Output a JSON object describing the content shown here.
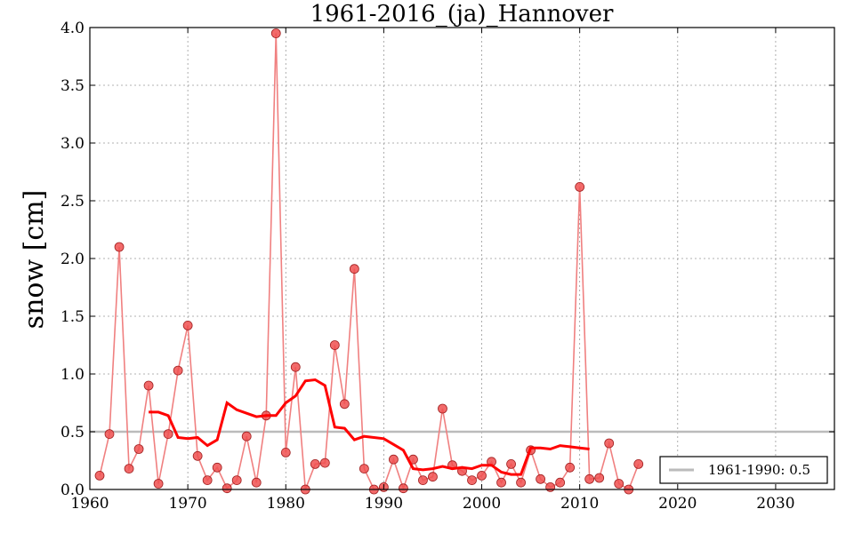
{
  "chart_data": {
    "type": "line",
    "title": "1961-2016_(ja)_Hannover",
    "xlabel": "",
    "ylabel": "snow [cm]",
    "xlim": [
      1960,
      2036
    ],
    "ylim": [
      0,
      4.0
    ],
    "xticks": [
      1960,
      1970,
      1980,
      1990,
      2000,
      2010,
      2020,
      2030
    ],
    "yticks": [
      0.0,
      0.5,
      1.0,
      1.5,
      2.0,
      2.5,
      3.0,
      3.5,
      4.0
    ],
    "ytick_labels": [
      "0.0",
      "0.5",
      "1.0",
      "1.5",
      "2.0",
      "2.5",
      "3.0",
      "3.5",
      "4.0"
    ],
    "grid": true,
    "legend_position": "bottom-right",
    "colors": {
      "annual": "#f08080",
      "marker": "#f05050",
      "smooth": "#ff0000",
      "reference": "#bbbbbb"
    },
    "series": [
      {
        "kind": "annual",
        "x": [
          1961,
          1962,
          1963,
          1964,
          1965,
          1966,
          1967,
          1968,
          1969,
          1970,
          1971,
          1972,
          1973,
          1974,
          1975,
          1976,
          1977,
          1978,
          1979,
          1980,
          1981,
          1982,
          1983,
          1984,
          1985,
          1986,
          1987,
          1988,
          1989,
          1990,
          1991,
          1992,
          1993,
          1994,
          1995,
          1996,
          1997,
          1998,
          1999,
          2000,
          2001,
          2002,
          2003,
          2004,
          2005,
          2006,
          2007,
          2008,
          2009,
          2010,
          2011,
          2012,
          2013,
          2014,
          2015,
          2016
        ],
        "values": [
          0.12,
          0.48,
          2.1,
          0.18,
          0.35,
          0.9,
          0.05,
          0.48,
          1.03,
          1.42,
          0.29,
          0.08,
          0.19,
          0.01,
          0.08,
          0.46,
          0.06,
          0.64,
          3.95,
          0.32,
          1.06,
          0.0,
          0.22,
          0.23,
          1.25,
          0.74,
          1.91,
          0.18,
          0.0,
          0.02,
          0.26,
          0.01,
          0.26,
          0.08,
          0.11,
          0.7,
          0.21,
          0.16,
          0.08,
          0.12,
          0.24,
          0.06,
          0.22,
          0.06,
          0.34,
          0.09,
          0.02,
          0.06,
          0.19,
          2.62,
          0.09,
          0.1,
          0.4,
          0.05,
          0.0,
          0.22
        ]
      },
      {
        "kind": "smooth",
        "x": [
          1966,
          1967,
          1968,
          1969,
          1970,
          1971,
          1972,
          1973,
          1974,
          1975,
          1976,
          1977,
          1978,
          1979,
          1980,
          1981,
          1982,
          1983,
          1984,
          1985,
          1986,
          1987,
          1988,
          1989,
          1990,
          1991,
          1992,
          1993,
          1994,
          1995,
          1996,
          1997,
          1998,
          1999,
          2000,
          2001,
          2002,
          2003,
          2004,
          2005,
          2006,
          2007,
          2008,
          2009,
          2010,
          2011
        ],
        "values": [
          0.67,
          0.67,
          0.64,
          0.45,
          0.44,
          0.45,
          0.38,
          0.43,
          0.75,
          0.69,
          0.66,
          0.63,
          0.64,
          0.64,
          0.75,
          0.81,
          0.94,
          0.95,
          0.9,
          0.54,
          0.53,
          0.43,
          0.46,
          0.45,
          0.44,
          0.39,
          0.34,
          0.18,
          0.17,
          0.18,
          0.2,
          0.18,
          0.19,
          0.18,
          0.21,
          0.21,
          0.15,
          0.13,
          0.13,
          0.36,
          0.36,
          0.35,
          0.38,
          0.37,
          0.36,
          0.35
        ]
      }
    ],
    "reference": {
      "label": "1961-1990: 0.5",
      "value": 0.5
    }
  }
}
